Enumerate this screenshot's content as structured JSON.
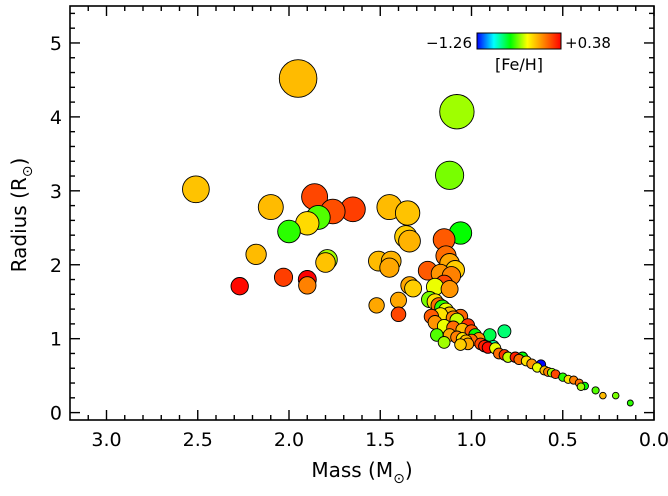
{
  "chart_data": {
    "type": "scatter",
    "xlabel": "Mass (M",
    "xlabel_sub": "⊙",
    "xlabel_close": ")",
    "ylabel": "Radius (R",
    "ylabel_sub": "⊙",
    "ylabel_close": ")",
    "xlim": [
      3.2,
      0.0
    ],
    "ylim": [
      -0.1,
      5.5
    ],
    "x_reversed": true,
    "x_ticks": [
      {
        "value": 3.0,
        "label": "3.0"
      },
      {
        "value": 2.5,
        "label": "2.5"
      },
      {
        "value": 2.0,
        "label": "2.0"
      },
      {
        "value": 1.5,
        "label": "1.5"
      },
      {
        "value": 1.0,
        "label": "1.0"
      },
      {
        "value": 0.5,
        "label": "0.5"
      },
      {
        "value": 0.0,
        "label": "0.0"
      }
    ],
    "y_ticks": [
      {
        "value": 0,
        "label": "0"
      },
      {
        "value": 1,
        "label": "1"
      },
      {
        "value": 2,
        "label": "2"
      },
      {
        "value": 3,
        "label": "3"
      },
      {
        "value": 4,
        "label": "4"
      },
      {
        "value": 5,
        "label": "5"
      }
    ],
    "grid": false,
    "colorbar": {
      "label": "[Fe/H]",
      "min": -1.26,
      "max": 0.38,
      "min_label": "−1.26",
      "max_label": "+0.38",
      "placement": "top-right",
      "colormap": [
        "#0000ff",
        "#00ffff",
        "#00ff00",
        "#ffff00",
        "#ff8000",
        "#ff0000"
      ]
    },
    "point_size_encodes": "radius",
    "points": [
      {
        "x": 1.95,
        "y": 4.52,
        "feh": -0.1
      },
      {
        "x": 1.08,
        "y": 4.07,
        "feh": -0.4
      },
      {
        "x": 2.51,
        "y": 3.02,
        "feh": -0.12
      },
      {
        "x": 1.12,
        "y": 3.21,
        "feh": -0.45
      },
      {
        "x": 2.1,
        "y": 2.78,
        "feh": -0.1
      },
      {
        "x": 1.86,
        "y": 2.92,
        "feh": 0.2
      },
      {
        "x": 1.76,
        "y": 2.72,
        "feh": 0.18
      },
      {
        "x": 1.65,
        "y": 2.75,
        "feh": 0.22
      },
      {
        "x": 1.9,
        "y": 2.56,
        "feh": -0.18
      },
      {
        "x": 1.84,
        "y": 2.64,
        "feh": -0.5
      },
      {
        "x": 2.0,
        "y": 2.45,
        "feh": -0.55
      },
      {
        "x": 1.45,
        "y": 2.78,
        "feh": -0.1
      },
      {
        "x": 1.35,
        "y": 2.7,
        "feh": -0.12
      },
      {
        "x": 1.36,
        "y": 2.38,
        "feh": -0.15
      },
      {
        "x": 1.34,
        "y": 2.32,
        "feh": -0.08
      },
      {
        "x": 1.06,
        "y": 2.43,
        "feh": -0.6
      },
      {
        "x": 1.15,
        "y": 2.34,
        "feh": 0.15
      },
      {
        "x": 2.18,
        "y": 2.14,
        "feh": -0.1
      },
      {
        "x": 1.79,
        "y": 2.07,
        "feh": -0.4
      },
      {
        "x": 1.8,
        "y": 2.03,
        "feh": -0.12
      },
      {
        "x": 1.51,
        "y": 2.05,
        "feh": -0.1
      },
      {
        "x": 1.44,
        "y": 2.05,
        "feh": -0.08
      },
      {
        "x": 1.45,
        "y": 1.96,
        "feh": -0.05
      },
      {
        "x": 1.14,
        "y": 2.12,
        "feh": 0.1
      },
      {
        "x": 1.12,
        "y": 2.02,
        "feh": -0.05
      },
      {
        "x": 1.09,
        "y": 1.93,
        "feh": -0.15
      },
      {
        "x": 1.11,
        "y": 1.85,
        "feh": 0.05
      },
      {
        "x": 1.24,
        "y": 1.92,
        "feh": 0.15
      },
      {
        "x": 1.17,
        "y": 1.88,
        "feh": 0.0
      },
      {
        "x": 2.03,
        "y": 1.83,
        "feh": 0.22
      },
      {
        "x": 1.9,
        "y": 1.8,
        "feh": 0.38
      },
      {
        "x": 1.9,
        "y": 1.72,
        "feh": 0.05
      },
      {
        "x": 2.27,
        "y": 1.71,
        "feh": 0.36
      },
      {
        "x": 1.34,
        "y": 1.72,
        "feh": -0.05
      },
      {
        "x": 1.32,
        "y": 1.68,
        "feh": -0.15
      },
      {
        "x": 1.2,
        "y": 1.7,
        "feh": -0.3
      },
      {
        "x": 1.15,
        "y": 1.74,
        "feh": 0.2
      },
      {
        "x": 1.12,
        "y": 1.67,
        "feh": 0.0
      },
      {
        "x": 1.4,
        "y": 1.52,
        "feh": -0.05
      },
      {
        "x": 1.23,
        "y": 1.53,
        "feh": -0.45
      },
      {
        "x": 1.2,
        "y": 1.5,
        "feh": -0.2
      },
      {
        "x": 1.18,
        "y": 1.45,
        "feh": 0.1
      },
      {
        "x": 1.16,
        "y": 1.42,
        "feh": -0.55
      },
      {
        "x": 1.14,
        "y": 1.38,
        "feh": -0.3
      },
      {
        "x": 1.17,
        "y": 1.32,
        "feh": -0.2
      },
      {
        "x": 1.12,
        "y": 1.33,
        "feh": -0.1
      },
      {
        "x": 1.1,
        "y": 1.28,
        "feh": 0.05
      },
      {
        "x": 1.08,
        "y": 1.25,
        "feh": -0.35
      },
      {
        "x": 1.06,
        "y": 1.3,
        "feh": 0.12
      },
      {
        "x": 1.52,
        "y": 1.45,
        "feh": -0.05
      },
      {
        "x": 1.4,
        "y": 1.33,
        "feh": 0.2
      },
      {
        "x": 1.22,
        "y": 1.3,
        "feh": 0.15
      },
      {
        "x": 1.2,
        "y": 1.22,
        "feh": 0.0
      },
      {
        "x": 1.15,
        "y": 1.17,
        "feh": -0.3
      },
      {
        "x": 1.1,
        "y": 1.15,
        "feh": 0.1
      },
      {
        "x": 1.05,
        "y": 1.12,
        "feh": -0.1
      },
      {
        "x": 1.02,
        "y": 1.18,
        "feh": 0.25
      },
      {
        "x": 1.0,
        "y": 1.1,
        "feh": 0.15
      },
      {
        "x": 1.19,
        "y": 1.05,
        "feh": -0.5
      },
      {
        "x": 1.12,
        "y": 1.05,
        "feh": -0.05
      },
      {
        "x": 1.08,
        "y": 1.02,
        "feh": 0.05
      },
      {
        "x": 1.05,
        "y": 1.0,
        "feh": -0.2
      },
      {
        "x": 1.03,
        "y": 0.97,
        "feh": -0.1
      },
      {
        "x": 1.0,
        "y": 0.98,
        "feh": 0.1
      },
      {
        "x": 0.98,
        "y": 1.05,
        "feh": -0.6
      },
      {
        "x": 0.96,
        "y": 1.0,
        "feh": 0.0
      },
      {
        "x": 1.15,
        "y": 0.95,
        "feh": -0.4
      },
      {
        "x": 1.06,
        "y": 0.92,
        "feh": -0.15
      },
      {
        "x": 1.02,
        "y": 0.93,
        "feh": -0.05
      },
      {
        "x": 0.95,
        "y": 0.93,
        "feh": 0.2
      },
      {
        "x": 0.93,
        "y": 0.9,
        "feh": 0.3
      },
      {
        "x": 0.91,
        "y": 0.88,
        "feh": 0.35
      },
      {
        "x": 0.88,
        "y": 0.9,
        "feh": -0.8
      },
      {
        "x": 0.87,
        "y": 0.87,
        "feh": -0.3
      },
      {
        "x": 0.9,
        "y": 1.05,
        "feh": -0.7
      },
      {
        "x": 0.82,
        "y": 1.1,
        "feh": -0.75
      },
      {
        "x": 0.85,
        "y": 0.8,
        "feh": 0.1
      },
      {
        "x": 0.82,
        "y": 0.78,
        "feh": 0.25
      },
      {
        "x": 0.8,
        "y": 0.75,
        "feh": -0.35
      },
      {
        "x": 0.76,
        "y": 0.75,
        "feh": 0.3
      },
      {
        "x": 0.74,
        "y": 0.72,
        "feh": 0.1
      },
      {
        "x": 0.72,
        "y": 0.75,
        "feh": -0.6
      },
      {
        "x": 0.7,
        "y": 0.7,
        "feh": -0.2
      },
      {
        "x": 0.67,
        "y": 0.66,
        "feh": 0.0
      },
      {
        "x": 0.64,
        "y": 0.61,
        "feh": -0.3
      },
      {
        "x": 0.62,
        "y": 0.65,
        "feh": -1.26
      },
      {
        "x": 0.6,
        "y": 0.57,
        "feh": -0.1
      },
      {
        "x": 0.58,
        "y": 0.55,
        "feh": 0.05
      },
      {
        "x": 0.56,
        "y": 0.54,
        "feh": -0.4
      },
      {
        "x": 0.54,
        "y": 0.52,
        "feh": 0.2
      },
      {
        "x": 0.5,
        "y": 0.48,
        "feh": -0.55
      },
      {
        "x": 0.47,
        "y": 0.45,
        "feh": -0.2
      },
      {
        "x": 0.44,
        "y": 0.44,
        "feh": 0.05
      },
      {
        "x": 0.41,
        "y": 0.4,
        "feh": 0.1
      },
      {
        "x": 0.4,
        "y": 0.35,
        "feh": -0.4
      },
      {
        "x": 0.38,
        "y": 0.36,
        "feh": -0.6
      },
      {
        "x": 0.32,
        "y": 0.3,
        "feh": -0.5
      },
      {
        "x": 0.28,
        "y": 0.23,
        "feh": -0.1
      },
      {
        "x": 0.21,
        "y": 0.23,
        "feh": -0.45
      },
      {
        "x": 0.13,
        "y": 0.13,
        "feh": -0.55
      }
    ]
  }
}
